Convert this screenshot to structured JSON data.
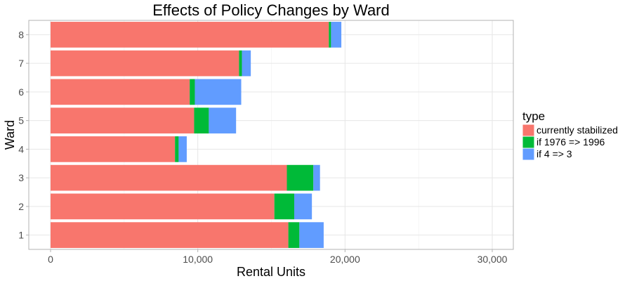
{
  "chart_data": {
    "type": "bar",
    "orientation": "horizontal",
    "stacked": true,
    "title": "Effects of Policy Changes by Ward",
    "xlabel": "Rental Units",
    "ylabel": "Ward",
    "xlim": [
      0,
      30000
    ],
    "x_ticks": [
      0,
      10000,
      20000,
      30000
    ],
    "x_tick_labels": [
      "0",
      "10,000",
      "20,000",
      "30,000"
    ],
    "categories": [
      "1",
      "2",
      "3",
      "4",
      "5",
      "6",
      "7",
      "8"
    ],
    "grid": true,
    "legend": {
      "title": "type",
      "position": "right"
    },
    "series": [
      {
        "name": "currently stabilized",
        "color": "#F8766D",
        "values": [
          16150,
          15200,
          16050,
          8450,
          9750,
          9450,
          12800,
          18900
        ]
      },
      {
        "name": "if 1976 => 1996",
        "color": "#00BA38",
        "values": [
          750,
          1350,
          1800,
          250,
          1000,
          350,
          200,
          150
        ]
      },
      {
        "name": "if 4 => 3",
        "color": "#619CFF",
        "values": [
          1650,
          1200,
          450,
          550,
          1850,
          3150,
          600,
          700
        ]
      }
    ]
  }
}
